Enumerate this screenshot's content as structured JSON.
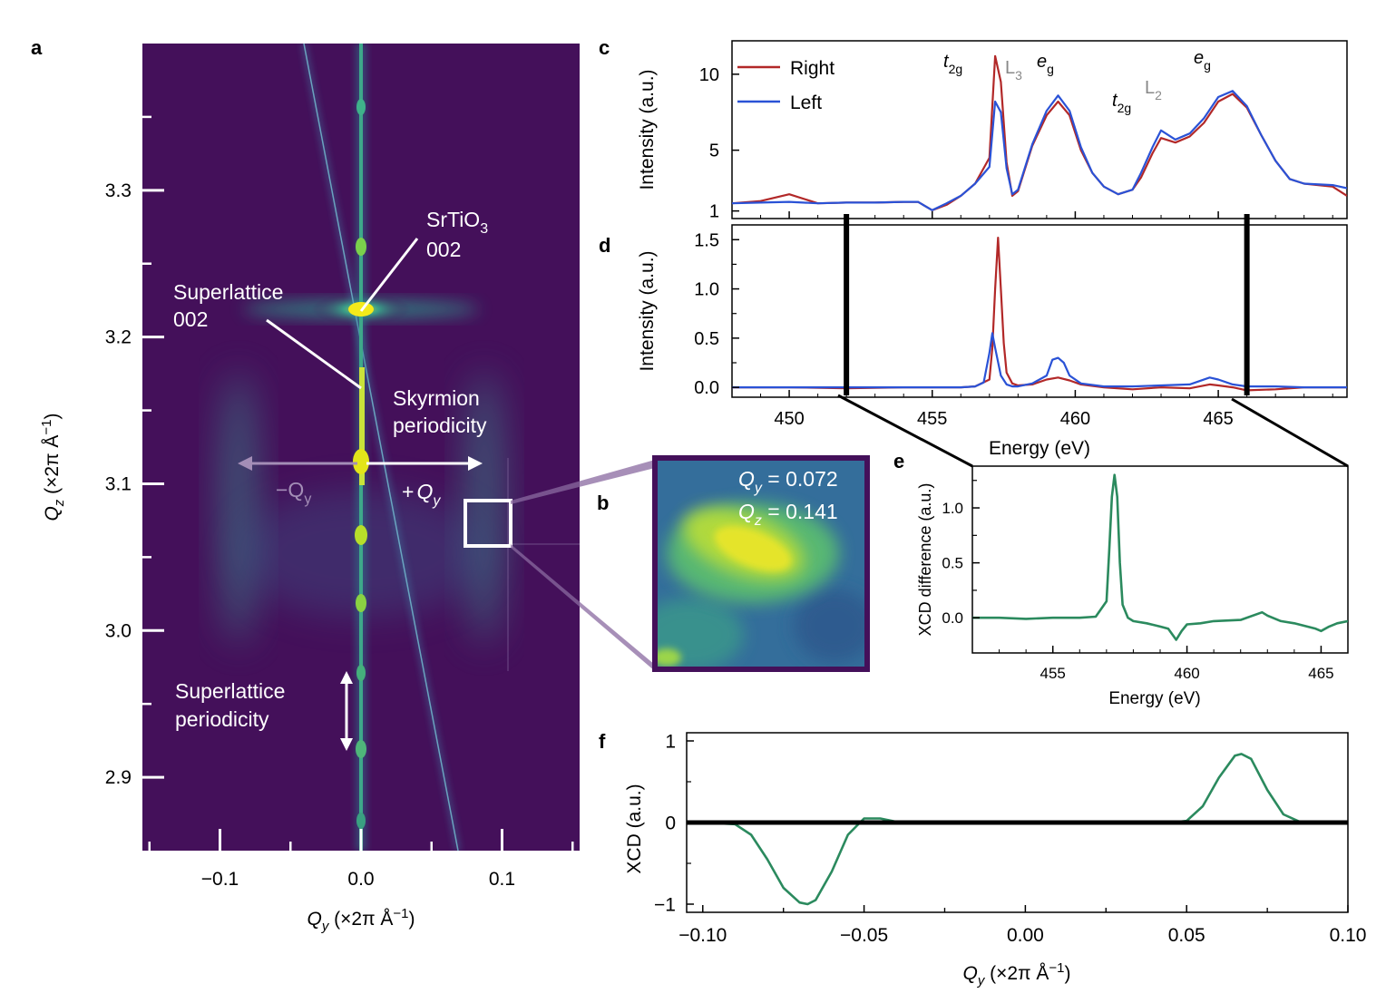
{
  "panels": {
    "a": "a",
    "b": "b",
    "c": "c",
    "d": "d",
    "e": "e",
    "f": "f"
  },
  "colors": {
    "right": "#b22828",
    "left": "#2a52d6",
    "xcd": "#2b8a5e",
    "map_bg": "#44105a"
  },
  "panel_a": {
    "ylabel_main": "Q",
    "ylabel_sub": "z",
    "ylabel_units": " (×2π Å",
    "ylabel_exp": "−1",
    "ylabel_close": ")",
    "xlabel_main": "Q",
    "xlabel_sub": "y",
    "xlabel_units": " (×2π Å",
    "xlabel_exp": "−1",
    "xlabel_close": ")",
    "annotations": {
      "srtio3_line1": "SrTiO",
      "srtio3_sub": "3",
      "srtio3_line2": "002",
      "sl_line1": "Superlattice",
      "sl_line2": "002",
      "sky_line1": "Skyrmion",
      "sky_line2": "periodicity",
      "minus_q": "−Q",
      "minus_q_sub": "y",
      "plus_q": "+",
      "plus_q_main": "Q",
      "plus_q_sub": "y",
      "slp_line1": "Superlattice",
      "slp_line2": "periodicity"
    }
  },
  "panel_b": {
    "qy_main": "Q",
    "qy_sub": "y",
    "qy_value": " = 0.072",
    "qz_main": "Q",
    "qz_sub": "z",
    "qz_value": " = 0.141"
  },
  "panel_c_labels": {
    "t2g_1": "t",
    "t2g_1_sub": "2g",
    "L3": "L",
    "L3_sub": "3",
    "eg_1": "e",
    "eg_1_sub": "g",
    "t2g_2": "t",
    "t2g_2_sub": "2g",
    "L2": "L",
    "L2_sub": "2",
    "eg_2": "e",
    "eg_2_sub": "g"
  },
  "chart_data": [
    {
      "id": "a",
      "type": "heatmap",
      "title": "",
      "xlabel": "Qy (×2π Å−1)",
      "ylabel": "Qz (×2π Å−1)",
      "xlim": [
        -0.155,
        0.155
      ],
      "ylim": [
        2.85,
        3.4
      ],
      "xticks": [
        -0.1,
        0.0,
        0.1
      ],
      "xtick_labels": [
        "−0.1",
        "0.0",
        "0.1"
      ],
      "yticks": [
        2.9,
        3.0,
        3.1,
        3.2,
        3.3
      ],
      "ytick_labels": [
        "2.9",
        "3.0",
        "3.1",
        "3.2",
        "3.3"
      ],
      "features": {
        "substrate_peak": [
          0.0,
          3.216
        ],
        "superlattice_peaks_qz": [
          3.36,
          3.26,
          3.11,
          3.065,
          3.02,
          2.97,
          2.92,
          2.87
        ],
        "satellites_qy": [
          -0.086,
          0.086
        ],
        "satellite_qz_range": [
          2.98,
          3.16
        ],
        "selected_box": {
          "qy": [
            0.072,
            0.104
          ],
          "qz": [
            3.06,
            3.085
          ]
        }
      }
    },
    {
      "id": "c",
      "type": "line",
      "xlabel": "",
      "ylabel": "Intensity (a.u.)",
      "xlim": [
        448,
        469.5
      ],
      "ylim": [
        0.5,
        12.2
      ],
      "yticks": [
        1,
        5,
        10
      ],
      "ytick_labels": [
        "1",
        "5",
        "10"
      ],
      "series": [
        {
          "name": "Right",
          "x": [
            448,
            449,
            450,
            451,
            452,
            453,
            454,
            454.5,
            455,
            455.5,
            456,
            456.5,
            457,
            457.2,
            457.4,
            457.6,
            457.8,
            458,
            458.5,
            459,
            459.4,
            459.8,
            460.2,
            460.6,
            461,
            461.5,
            462,
            462.3,
            462.7,
            463,
            463.5,
            464,
            464.5,
            465,
            465.5,
            466,
            466.5,
            467,
            467.5,
            468,
            469,
            469.5
          ],
          "y": [
            1.5,
            1.65,
            2.1,
            1.5,
            1.55,
            1.55,
            1.6,
            1.6,
            1.05,
            1.4,
            2.0,
            2.8,
            4.5,
            11.2,
            9.5,
            4.2,
            2.0,
            2.3,
            5.3,
            7.3,
            8.2,
            7.3,
            5.0,
            3.5,
            2.6,
            2.1,
            2.4,
            3.2,
            4.8,
            5.8,
            5.5,
            5.9,
            6.8,
            8.2,
            8.7,
            7.8,
            6.0,
            4.3,
            3.1,
            2.8,
            2.6,
            2.0
          ]
        },
        {
          "name": "Left",
          "x": [
            448,
            449,
            450,
            451,
            452,
            453,
            454,
            454.5,
            455,
            455.5,
            456,
            456.5,
            457,
            457.2,
            457.4,
            457.6,
            457.8,
            458,
            458.5,
            459,
            459.4,
            459.8,
            460.2,
            460.6,
            461,
            461.5,
            462,
            462.3,
            462.7,
            463,
            463.5,
            464,
            464.5,
            465,
            465.5,
            466,
            466.5,
            467,
            467.5,
            468,
            469,
            469.5
          ],
          "y": [
            1.5,
            1.55,
            1.6,
            1.5,
            1.55,
            1.55,
            1.6,
            1.6,
            1.05,
            1.5,
            2.0,
            2.8,
            3.9,
            8.2,
            7.5,
            3.8,
            2.1,
            2.4,
            5.4,
            7.6,
            8.6,
            7.6,
            5.2,
            3.5,
            2.6,
            2.1,
            2.4,
            3.5,
            5.2,
            6.3,
            5.7,
            6.1,
            7.1,
            8.5,
            8.9,
            7.9,
            6.0,
            4.3,
            3.1,
            2.8,
            2.7,
            2.5
          ]
        }
      ]
    },
    {
      "id": "d",
      "type": "line",
      "xlabel": "Energy (eV)",
      "ylabel": "Intensity (a.u.)",
      "xlim": [
        448,
        469.5
      ],
      "ylim": [
        -0.1,
        1.65
      ],
      "xticks": [
        450,
        455,
        460,
        465
      ],
      "xtick_labels": [
        "450",
        "455",
        "460",
        "465"
      ],
      "yticks": [
        0.0,
        0.5,
        1.0,
        1.5
      ],
      "ytick_labels": [
        "0.0",
        "0.5",
        "1.0",
        "1.5"
      ],
      "markers_x": [
        452,
        466
      ],
      "series": [
        {
          "name": "Right",
          "x": [
            448,
            450,
            452,
            454,
            455,
            456,
            456.5,
            457,
            457.1,
            457.2,
            457.3,
            457.4,
            457.5,
            457.6,
            457.8,
            458,
            458.5,
            459,
            459.4,
            459.8,
            460.2,
            461,
            462,
            463,
            464,
            464.7,
            465,
            465.5,
            466,
            467,
            468,
            469.5
          ],
          "y": [
            0.0,
            0.0,
            -0.01,
            0.0,
            0.0,
            0.0,
            0.01,
            0.08,
            0.4,
            1.0,
            1.52,
            1.0,
            0.45,
            0.15,
            0.04,
            0.02,
            0.03,
            0.08,
            0.1,
            0.07,
            0.03,
            0.0,
            -0.02,
            0.0,
            -0.01,
            0.03,
            0.02,
            0.0,
            -0.03,
            -0.02,
            0.0,
            0.0
          ]
        },
        {
          "name": "Left",
          "x": [
            448,
            450,
            452,
            454,
            455,
            456,
            456.5,
            456.8,
            457,
            457.1,
            457.2,
            457.4,
            457.6,
            457.8,
            458,
            458.5,
            459,
            459.2,
            459.4,
            459.6,
            459.8,
            460.2,
            461,
            462,
            463,
            464,
            464.7,
            465,
            465.5,
            466,
            467,
            468,
            469.5
          ],
          "y": [
            0.0,
            0.0,
            0.0,
            0.0,
            0.0,
            0.0,
            0.01,
            0.05,
            0.35,
            0.55,
            0.4,
            0.12,
            0.03,
            0.01,
            0.01,
            0.04,
            0.12,
            0.28,
            0.3,
            0.25,
            0.12,
            0.04,
            0.01,
            0.01,
            0.02,
            0.03,
            0.1,
            0.08,
            0.03,
            0.01,
            0.01,
            0.0,
            0.0
          ]
        }
      ]
    },
    {
      "id": "e",
      "type": "line",
      "xlabel": "Energy (eV)",
      "ylabel": "XCD difference (a.u.)",
      "xlim": [
        452,
        466
      ],
      "ylim": [
        -0.32,
        1.38
      ],
      "xticks": [
        455,
        460,
        465
      ],
      "xtick_labels": [
        "455",
        "460",
        "465"
      ],
      "yticks": [
        0.0,
        0.5,
        1.0
      ],
      "ytick_labels": [
        "0.0",
        "0.5",
        "1.0"
      ],
      "series": [
        {
          "name": "XCD",
          "x": [
            452,
            453,
            454,
            455,
            456,
            456.6,
            457,
            457.1,
            457.2,
            457.3,
            457.4,
            457.5,
            457.6,
            457.8,
            458,
            458.5,
            459,
            459.3,
            459.6,
            459.8,
            460,
            460.5,
            461,
            462,
            462.8,
            463,
            463.5,
            464,
            464.8,
            465,
            465.3,
            465.6,
            466
          ],
          "y": [
            0.0,
            0.0,
            -0.01,
            0.0,
            0.0,
            0.01,
            0.15,
            0.6,
            1.1,
            1.3,
            1.1,
            0.5,
            0.12,
            0.0,
            -0.03,
            -0.05,
            -0.08,
            -0.1,
            -0.2,
            -0.12,
            -0.06,
            -0.05,
            -0.03,
            -0.02,
            0.05,
            0.02,
            -0.03,
            -0.05,
            -0.1,
            -0.12,
            -0.08,
            -0.05,
            -0.03
          ]
        }
      ]
    },
    {
      "id": "f",
      "type": "line",
      "xlabel": "Qy (×2π Å−1)",
      "ylabel": "XCD (a.u.)",
      "xlim": [
        -0.105,
        0.1
      ],
      "ylim": [
        -1.1,
        1.1
      ],
      "xticks": [
        -0.1,
        -0.05,
        0.0,
        0.05,
        0.1
      ],
      "xtick_labels": [
        "−0.10",
        "−0.05",
        "0.00",
        "0.05",
        "0.10"
      ],
      "yticks": [
        -1,
        0,
        1
      ],
      "ytick_labels": [
        "−1",
        "0",
        "1"
      ],
      "series": [
        {
          "name": "XCD vs Qy",
          "x": [
            -0.1,
            -0.09,
            -0.085,
            -0.08,
            -0.075,
            -0.07,
            -0.0675,
            -0.065,
            -0.06,
            -0.055,
            -0.05,
            -0.045,
            -0.04,
            -0.03,
            0.0,
            0.045,
            0.05,
            0.055,
            0.06,
            0.065,
            0.067,
            0.07,
            0.075,
            0.08,
            0.085,
            0.09,
            0.1
          ],
          "y": [
            0.0,
            -0.02,
            -0.15,
            -0.45,
            -0.8,
            -0.98,
            -1.0,
            -0.95,
            -0.6,
            -0.15,
            0.05,
            0.05,
            0.01,
            0.0,
            0.0,
            0.0,
            0.02,
            0.2,
            0.55,
            0.82,
            0.84,
            0.78,
            0.4,
            0.1,
            0.01,
            0.0,
            0.0
          ]
        },
        {
          "name": "zero",
          "x": [
            -0.105,
            0.1
          ],
          "y": [
            0.0,
            0.0
          ]
        }
      ]
    }
  ],
  "legend_c": {
    "right": "Right",
    "left": "Left"
  }
}
